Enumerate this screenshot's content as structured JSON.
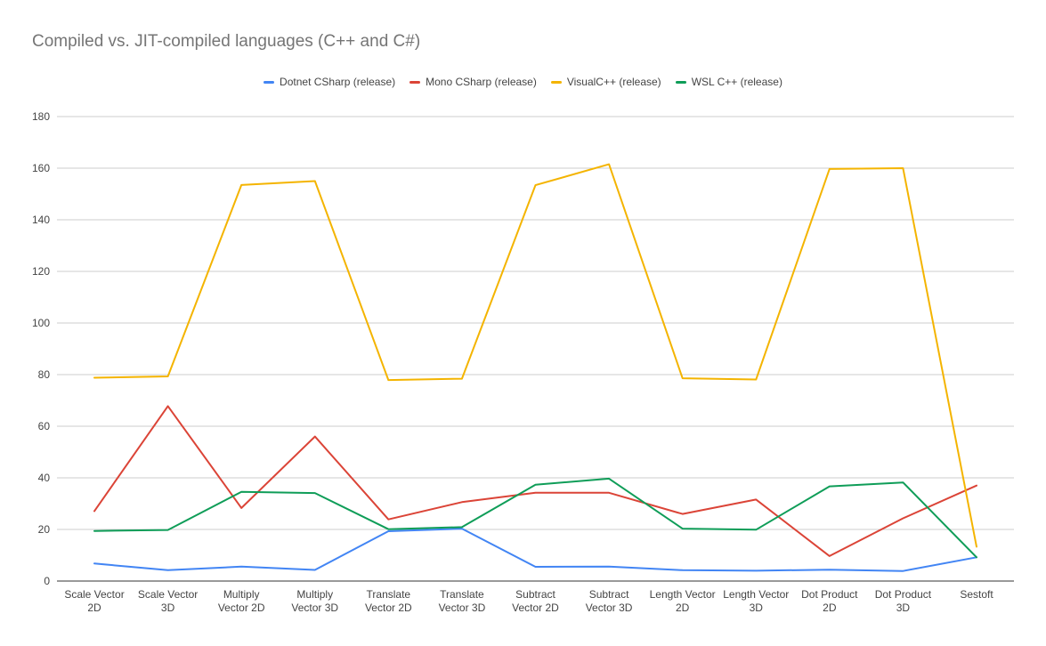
{
  "chart_data": {
    "type": "line",
    "title": "Compiled vs. JIT-compiled languages (C++ and C#)",
    "xlabel": "",
    "ylabel": "",
    "ylim": [
      0,
      180
    ],
    "yticks": [
      0,
      20,
      40,
      60,
      80,
      100,
      120,
      140,
      160,
      180
    ],
    "grid": true,
    "legend_position": "top-center",
    "categories": [
      [
        "Scale Vector",
        "2D"
      ],
      [
        "Scale Vector",
        "3D"
      ],
      [
        "Multiply",
        "Vector 2D"
      ],
      [
        "Multiply",
        "Vector 3D"
      ],
      [
        "Translate",
        "Vector 2D"
      ],
      [
        "Translate",
        "Vector 3D"
      ],
      [
        "Subtract",
        "Vector 2D"
      ],
      [
        "Subtract",
        "Vector 3D"
      ],
      [
        "Length Vector",
        "2D"
      ],
      [
        "Length Vector",
        "3D"
      ],
      [
        "Dot Product",
        "2D"
      ],
      [
        "Dot Product",
        "3D"
      ],
      [
        "Sestoft"
      ]
    ],
    "series": [
      {
        "name": "Dotnet CSharp (release)",
        "color": "#4285f4",
        "values": [
          6.8,
          4.2,
          5.6,
          4.3,
          19.3,
          20.3,
          5.5,
          5.6,
          4.2,
          4.0,
          4.4,
          3.9,
          9.2
        ]
      },
      {
        "name": "Mono CSharp (release)",
        "color": "#db4437",
        "values": [
          27.1,
          67.8,
          28.3,
          56.0,
          23.9,
          30.6,
          34.2,
          34.2,
          26.0,
          31.6,
          9.7,
          24.3,
          37.0
        ]
      },
      {
        "name": "VisualC++ (release)",
        "color": "#f4b400",
        "values": [
          78.8,
          79.3,
          153.5,
          155.0,
          77.9,
          78.4,
          153.4,
          161.5,
          78.6,
          78.1,
          159.7,
          160.0,
          13.3
        ]
      },
      {
        "name": "WSL C++ (release)",
        "color": "#0f9d58",
        "values": [
          19.4,
          19.8,
          34.6,
          34.1,
          20.1,
          20.9,
          37.3,
          39.7,
          20.3,
          19.9,
          36.7,
          38.2,
          9.2
        ]
      }
    ]
  }
}
